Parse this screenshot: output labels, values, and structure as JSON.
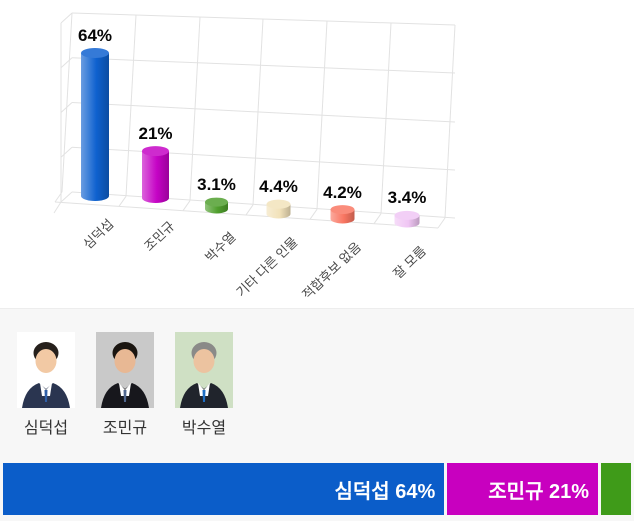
{
  "page": {
    "background": "#ffffff",
    "panel_background": "#f7f7f7"
  },
  "chart_data": [
    {
      "type": "bar",
      "style": "3d-cylinder",
      "title": "",
      "categories": [
        "심덕섭",
        "조민규",
        "박수열",
        "기타 다른 인물",
        "적합후보 없음",
        "잘 모름"
      ],
      "values": [
        64,
        21,
        3.1,
        4.4,
        4.2,
        3.4
      ],
      "data_labels": [
        "64%",
        "21%",
        "3.1%",
        "4.4%",
        "4.2%",
        "3.4%"
      ],
      "colors": [
        "#0e61cf",
        "#c503c5",
        "#4f9f2d",
        "#f2e2ba",
        "#f97662",
        "#f0c6f4"
      ],
      "xlabel": "",
      "ylabel": "",
      "ylim": [
        0,
        70
      ],
      "grid": true,
      "legend": false,
      "axis_value_labels": false
    },
    {
      "type": "bar",
      "subtype": "horizontal-stacked",
      "normalized_to_top3": true,
      "segments": [
        {
          "name": "심덕섭",
          "value": 64,
          "label": "심덕섭 64%",
          "color": "#0b5dc9"
        },
        {
          "name": "조민규",
          "value": 21,
          "label": "조민규 21%",
          "color": "#c800bf"
        },
        {
          "name": "박수열",
          "value": 3.1,
          "label": "",
          "color": "#3f9b19"
        }
      ]
    }
  ],
  "candidates": [
    {
      "name": "심덕섭",
      "photo": {
        "bg": "#ffffff",
        "suit": "#2a3550",
        "tie": "#2f5fa8",
        "skin": "#f2c9a4",
        "hair": "#26201c"
      }
    },
    {
      "name": "조민규",
      "photo": {
        "bg": "#c9c9c9",
        "suit": "#17171c",
        "tie": "#51688f",
        "skin": "#e8b894",
        "hair": "#1a1510"
      }
    },
    {
      "name": "박수열",
      "photo": {
        "bg": "#cfe0c4",
        "suit": "#20242c",
        "tie": "#1f6fc4",
        "skin": "#ecc3a0",
        "hair": "#8a8a88"
      }
    }
  ]
}
